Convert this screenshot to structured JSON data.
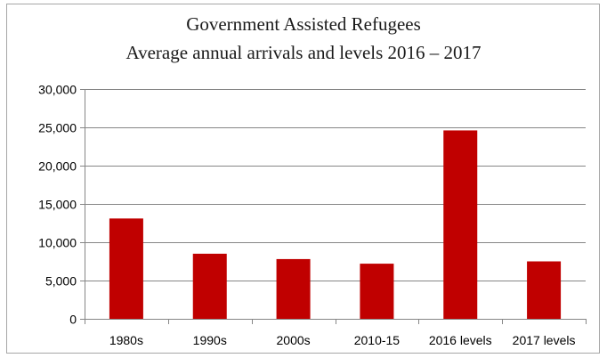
{
  "chart_data": {
    "type": "bar",
    "title": "Government Assisted Refugees",
    "subtitle": "Average annual arrivals and levels 2016 – 2017",
    "categories": [
      "1980s",
      "1990s",
      "2000s",
      "2010-15",
      "2016 levels",
      "2017 levels"
    ],
    "values": [
      13100,
      8500,
      7800,
      7200,
      24600,
      7500
    ],
    "ylim": [
      0,
      30000
    ],
    "yticks": [
      0,
      5000,
      10000,
      15000,
      20000,
      25000,
      30000
    ],
    "ytick_labels": [
      "0",
      "5,000",
      "10,000",
      "15,000",
      "20,000",
      "25,000",
      "30,000"
    ],
    "grid": true,
    "legend": "none",
    "colors": {
      "bar": "#c00000",
      "grid": "#868686",
      "axis": "#868686"
    }
  }
}
